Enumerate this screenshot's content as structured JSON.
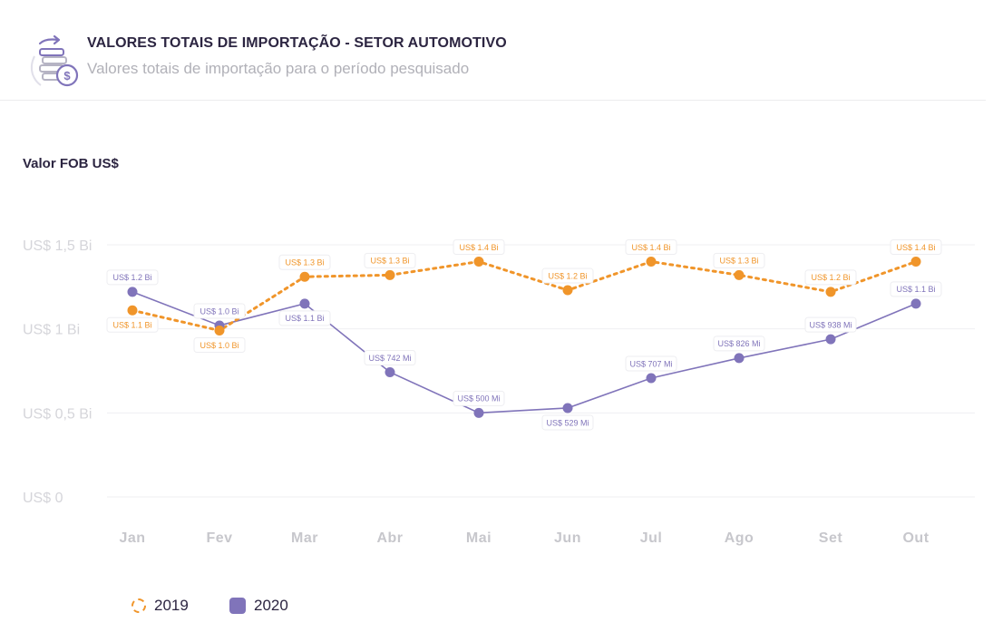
{
  "header": {
    "title": "VALORES TOTAIS DE IMPORTAÇÃO - SETOR AUTOMOTIVO",
    "subtitle": "Valores totais de importação para o período pesquisado",
    "icon": "coins-dollar-icon"
  },
  "colors": {
    "s2019": "#f0952a",
    "s2020": "#8074ba",
    "grid": "#efeff2",
    "text": "#2c2541"
  },
  "chart_data": {
    "type": "line",
    "title": "VALORES TOTAIS DE IMPORTAÇÃO - SETOR AUTOMOTIVO",
    "ylabel": "Valor FOB US$",
    "xlabel": "",
    "categories": [
      "Jan",
      "Fev",
      "Mar",
      "Abr",
      "Mai",
      "Jun",
      "Jul",
      "Ago",
      "Set",
      "Out"
    ],
    "ylim": [
      0,
      1.5
    ],
    "yticks": [
      {
        "value": 0,
        "label": "US$ 0"
      },
      {
        "value": 0.5,
        "label": "US$ 0,5 Bi"
      },
      {
        "value": 1,
        "label": "US$ 1 Bi"
      },
      {
        "value": 1.5,
        "label": "US$ 1,5 Bi"
      }
    ],
    "grid": true,
    "legend_position": "bottom-left",
    "series": [
      {
        "name": "2019",
        "style": "dashed",
        "values": [
          1.11,
          0.99,
          1.31,
          1.32,
          1.4,
          1.23,
          1.4,
          1.32,
          1.22,
          1.4
        ],
        "labels": [
          "US$ 1.1 Bi",
          "US$ 1.0 Bi",
          "US$ 1.3 Bi",
          "US$ 1.3 Bi",
          "US$ 1.4 Bi",
          "US$ 1.2 Bi",
          "US$ 1.4 Bi",
          "US$ 1.3 Bi",
          "US$ 1.2 Bi",
          "US$ 1.4 Bi"
        ]
      },
      {
        "name": "2020",
        "style": "solid",
        "values": [
          1.22,
          1.02,
          1.15,
          0.742,
          0.5,
          0.529,
          0.707,
          0.826,
          0.938,
          1.15
        ],
        "labels": [
          "US$ 1.2 Bi",
          "US$ 1.0 Bi",
          "US$ 1.1 Bi",
          "US$ 742 Mi",
          "US$ 500 Mi",
          "US$ 529 Mi",
          "US$ 707 Mi",
          "US$ 826 Mi",
          "US$ 938 Mi",
          "US$ 1.1 Bi"
        ]
      }
    ]
  }
}
